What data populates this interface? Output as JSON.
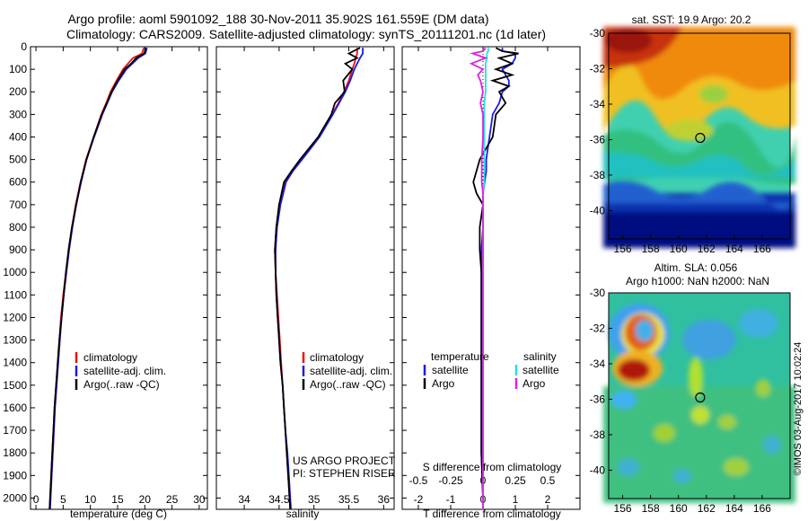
{
  "header": {
    "line1": "Argo profile: aoml 5901092_188 30-Nov-2011 35.902S 161.559E (DM data)",
    "line2": "Climatology: CARS2009. Satellite-adjusted climatology: synTS_20111201.nc (1d later)"
  },
  "colors": {
    "climatology": "#ee1111",
    "satellite": "#1a1aee",
    "argo": "#000000",
    "argo_salinity": "#e020e0",
    "sat_salinity": "#20e0e0"
  },
  "credits": {
    "project": "US ARGO PROJECT",
    "pi": "PI: STEPHEN RISER",
    "stamp": "©IMOS 03-Aug-2017 10:02:24"
  },
  "chart_data": [
    {
      "type": "line",
      "xlabel": "temperature (deg C)",
      "ylabel": "",
      "ylim": [
        2050,
        0
      ],
      "xlim": [
        -1,
        31.5
      ],
      "xticks": [
        0,
        5,
        10,
        15,
        20,
        25,
        30
      ],
      "yticks": [
        0,
        100,
        200,
        300,
        400,
        500,
        600,
        700,
        800,
        900,
        1000,
        1100,
        1200,
        1300,
        1400,
        1500,
        1600,
        1700,
        1800,
        1900,
        2000
      ],
      "legend": [
        "climatology",
        "satellite-adj. clim.",
        "Argo(..raw -QC)"
      ],
      "legend_position": "lower-right",
      "depth": [
        5,
        30,
        50,
        75,
        100,
        150,
        200,
        250,
        300,
        400,
        500,
        600,
        700,
        800,
        900,
        1000,
        1100,
        1200,
        1300,
        1400,
        1500,
        1600,
        1700,
        1800,
        1900,
        2000,
        2050
      ],
      "series": [
        {
          "name": "climatology",
          "values": [
            19.8,
            19.5,
            17.8,
            16.9,
            16.0,
            14.8,
            13.7,
            12.9,
            12.0,
            10.6,
            9.2,
            8.2,
            7.3,
            6.6,
            6.0,
            5.5,
            5.0,
            4.6,
            4.3,
            4.0,
            3.7,
            3.4,
            3.2,
            3.0,
            2.8,
            2.6,
            2.5
          ]
        },
        {
          "name": "satellite-adj. clim.",
          "values": [
            20.4,
            20.1,
            18.8,
            17.7,
            16.6,
            15.2,
            14.0,
            13.1,
            12.2,
            10.7,
            9.3,
            8.3,
            7.4,
            6.7,
            6.1,
            5.6,
            5.1,
            4.7,
            4.4,
            4.1,
            3.8,
            3.5,
            3.3,
            3.1,
            2.9,
            2.7,
            2.6
          ]
        },
        {
          "name": "Argo(..raw -QC)",
          "values": [
            20.2,
            19.9,
            18.4,
            17.5,
            16.3,
            15.0,
            13.9,
            13.0,
            12.1,
            10.6,
            9.3,
            8.2,
            7.4,
            6.6,
            6.0,
            5.5,
            5.1,
            4.7,
            4.3,
            4.0,
            3.7,
            3.4,
            3.2,
            3.0,
            2.8,
            2.6,
            2.5
          ]
        }
      ]
    },
    {
      "type": "line",
      "xlabel": "salinity",
      "ylabel": "",
      "ylim": [
        2050,
        0
      ],
      "xlim": [
        33.6,
        36.15
      ],
      "xticks": [
        34,
        34.5,
        35,
        35.5,
        36
      ],
      "legend": [
        "climatology",
        "satellite-adj. clim.",
        "Argo(..raw -QC)"
      ],
      "legend_position": "lower-right",
      "depth": [
        5,
        30,
        50,
        75,
        100,
        150,
        200,
        250,
        300,
        400,
        500,
        550,
        600,
        700,
        800,
        900,
        1000,
        1100,
        1200,
        1300,
        1400,
        1500,
        1600,
        1700,
        1800,
        1900,
        2000,
        2050
      ],
      "series": [
        {
          "name": "climatology",
          "values": [
            35.62,
            35.62,
            35.6,
            35.58,
            35.55,
            35.5,
            35.43,
            35.35,
            35.26,
            35.07,
            34.82,
            34.68,
            34.58,
            34.5,
            34.46,
            34.44,
            34.45,
            34.47,
            34.49,
            34.51,
            34.53,
            34.55,
            34.57,
            34.59,
            34.61,
            34.63,
            34.65,
            34.66
          ]
        },
        {
          "name": "satellite-adj. clim.",
          "values": [
            35.7,
            35.7,
            35.66,
            35.62,
            35.58,
            35.52,
            35.45,
            35.36,
            35.27,
            35.08,
            34.83,
            34.7,
            34.6,
            34.52,
            34.47,
            34.45,
            34.45,
            34.46,
            34.48,
            34.5,
            34.52,
            34.55,
            34.57,
            34.59,
            34.62,
            34.64,
            34.66,
            34.67
          ]
        },
        {
          "name": "Argo(..raw -QC)",
          "values": [
            35.66,
            35.5,
            35.62,
            35.45,
            35.55,
            35.42,
            35.44,
            35.3,
            35.25,
            35.06,
            34.8,
            34.68,
            34.57,
            34.5,
            34.46,
            34.44,
            34.45,
            34.46,
            34.48,
            34.5,
            34.52,
            34.55,
            34.57,
            34.59,
            34.61,
            34.63,
            34.65,
            34.66
          ]
        }
      ]
    },
    {
      "type": "line",
      "xlabel": "T difference from climatology",
      "xlabel_top": "S difference from climatology",
      "ylabel": "",
      "ylim": [
        2050,
        0
      ],
      "xlim": [
        -2.5,
        3
      ],
      "xticks": [
        -2,
        -1,
        0,
        1,
        2
      ],
      "s_ticks": [
        -0.5,
        -0.25,
        0,
        0.25,
        0.5
      ],
      "legend_titles": [
        "temperature",
        "salinity"
      ],
      "legend_temperature": [
        "satellite",
        "Argo"
      ],
      "legend_salinity": [
        "satellite",
        "Argo"
      ],
      "legend_position": "lower-center",
      "depth": [
        5,
        20,
        30,
        50,
        75,
        100,
        125,
        150,
        175,
        200,
        250,
        300,
        400,
        500,
        550,
        600,
        650,
        700,
        800,
        900,
        1000,
        1200,
        1400,
        1600,
        1800,
        2000,
        2050
      ],
      "series": [
        {
          "name": "temperature satellite",
          "values": [
            0.6,
            0.6,
            1.0,
            1.0,
            0.9,
            0.6,
            0.7,
            0.8,
            0.8,
            0.6,
            0.5,
            0.3,
            0.2,
            0.1,
            0.1,
            0.05,
            0.0,
            0.0,
            0.0,
            -0.05,
            -0.05,
            -0.05,
            -0.05,
            -0.05,
            -0.05,
            0.0,
            0.0
          ]
        },
        {
          "name": "temperature Argo",
          "values": [
            0.4,
            0.6,
            1.1,
            0.5,
            0.9,
            0.4,
            0.9,
            0.3,
            0.8,
            0.5,
            0.7,
            0.4,
            0.3,
            -0.1,
            -0.2,
            -0.3,
            -0.2,
            0.0,
            -0.1,
            -0.1,
            -0.05,
            -0.05,
            -0.05,
            -0.05,
            -0.05,
            0.0,
            0.0
          ]
        },
        {
          "name": "salinity satellite",
          "values": [
            0.04,
            0.04,
            0.03,
            0.03,
            0.02,
            0.02,
            0.02,
            0.02,
            0.02,
            0.02,
            0.01,
            0.01,
            0.01,
            0.01,
            0.01,
            0.01,
            0.0,
            0.0,
            0.0,
            0.0,
            0.0,
            0.0,
            0.0,
            0.0,
            0.0,
            0.0,
            0.0
          ]
        },
        {
          "name": "salinity Argo",
          "values": [
            0.02,
            0.0,
            -0.08,
            0.02,
            -0.09,
            0.0,
            -0.04,
            -0.02,
            -0.01,
            0.0,
            -0.02,
            0.0,
            0.0,
            -0.01,
            -0.01,
            -0.01,
            0.0,
            0.0,
            0.0,
            0.0,
            0.0,
            0.0,
            0.0,
            0.0,
            0.0,
            0.0,
            0.0
          ]
        }
      ]
    },
    {
      "type": "heatmap",
      "title": "sat. SST: 19.9 Argo: 20.2",
      "xlim": [
        155,
        168
      ],
      "ylim": [
        -41.6,
        -30
      ],
      "xticks": [
        156,
        158,
        160,
        162,
        164,
        166
      ],
      "yticks": [
        -30,
        -32,
        -34,
        -36,
        -38,
        -40
      ],
      "marker": {
        "lon": 161.559,
        "lat": -35.902
      }
    },
    {
      "type": "heatmap",
      "title": "Altim. SLA: 0.056",
      "subtitle": "Argo h1000: NaN h2000: NaN",
      "xlim": [
        155,
        168
      ],
      "ylim": [
        -41.6,
        -30
      ],
      "xticks": [
        156,
        158,
        160,
        162,
        164,
        166
      ],
      "yticks": [
        -30,
        -32,
        -34,
        -36,
        -38,
        -40
      ],
      "marker": {
        "lon": 161.559,
        "lat": -35.902
      }
    }
  ]
}
